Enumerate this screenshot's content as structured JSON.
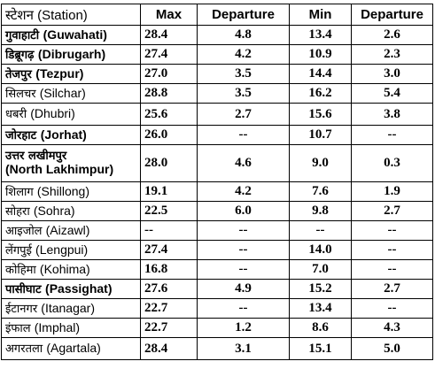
{
  "headers": {
    "station": "स्टेशन (Station)",
    "max": "Max",
    "departure_max": "Departure",
    "min": "Min",
    "departure_min": "Departure"
  },
  "rows": [
    {
      "hi": "गुवाहाटी",
      "en": "(Guwahati)",
      "bold": true,
      "max": "28.4",
      "dmax": "4.8",
      "min": "13.4",
      "dmin": "2.6"
    },
    {
      "hi": "डिब्रूगढ़",
      "en": "(Dibrugarh)",
      "bold": true,
      "max": "27.4",
      "dmax": "4.2",
      "min": "10.9",
      "dmin": "2.3"
    },
    {
      "hi": "तेजपुर",
      "en": "(Tezpur)",
      "bold": true,
      "max": "27.0",
      "dmax": "3.5",
      "min": "14.4",
      "dmin": "3.0"
    },
    {
      "hi": "सिलचर",
      "en": "(Silchar)",
      "bold": false,
      "max": "28.8",
      "dmax": "3.5",
      "min": "16.2",
      "dmin": "5.4"
    },
    {
      "hi": "धबरी",
      "en": "(Dhubri)",
      "bold": false,
      "max": "25.6",
      "dmax": "2.7",
      "min": "15.6",
      "dmin": "3.8"
    },
    {
      "hi": "जोरहाट",
      "en": "(Jorhat)",
      "bold": true,
      "max": "26.0",
      "dmax": "--",
      "min": "10.7",
      "dmin": "--"
    },
    {
      "hi": "उत्तर लखीमपुर",
      "en": "(North Lakhimpur)",
      "bold": true,
      "max": "28.0",
      "dmax": "4.6",
      "min": "9.0",
      "dmin": "0.3"
    },
    {
      "hi": "शिलाग",
      "en": "(Shillong)",
      "bold": false,
      "max": "19.1",
      "dmax": "4.2",
      "min": "7.6",
      "dmin": "1.9"
    },
    {
      "hi": "सोहरा",
      "en": "(Sohra)",
      "bold": false,
      "max": "22.5",
      "dmax": "6.0",
      "min": "9.8",
      "dmin": "2.7"
    },
    {
      "hi": "आइजोल",
      "en": "(Aizawl)",
      "bold": false,
      "max": "--",
      "dmax": "--",
      "min": "--",
      "dmin": "--"
    },
    {
      "hi": "लेंगपुई",
      "en": "(Lengpui)",
      "bold": false,
      "max": "27.4",
      "dmax": "--",
      "min": "14.0",
      "dmin": "--"
    },
    {
      "hi": "कोहिमा",
      "en": "(Kohima)",
      "bold": false,
      "max": "16.8",
      "dmax": "--",
      "min": "7.0",
      "dmin": "--"
    },
    {
      "hi": "पासीघाट",
      "en": "(Passighat)",
      "bold": true,
      "max": "27.6",
      "dmax": "4.9",
      "min": "15.2",
      "dmin": "2.7"
    },
    {
      "hi": "ईटानगर",
      "en": "(Itanagar)",
      "bold": false,
      "max": "22.7",
      "dmax": "--",
      "min": "13.4",
      "dmin": "--"
    },
    {
      "hi": "इंफाल",
      "en": "(Imphal)",
      "bold": false,
      "max": "22.7",
      "dmax": "1.2",
      "min": "8.6",
      "dmin": "4.3"
    },
    {
      "hi": "अगरतला",
      "en": "(Agartala)",
      "bold": false,
      "max": "28.4",
      "dmax": "3.1",
      "min": "15.1",
      "dmin": "5.0"
    }
  ]
}
